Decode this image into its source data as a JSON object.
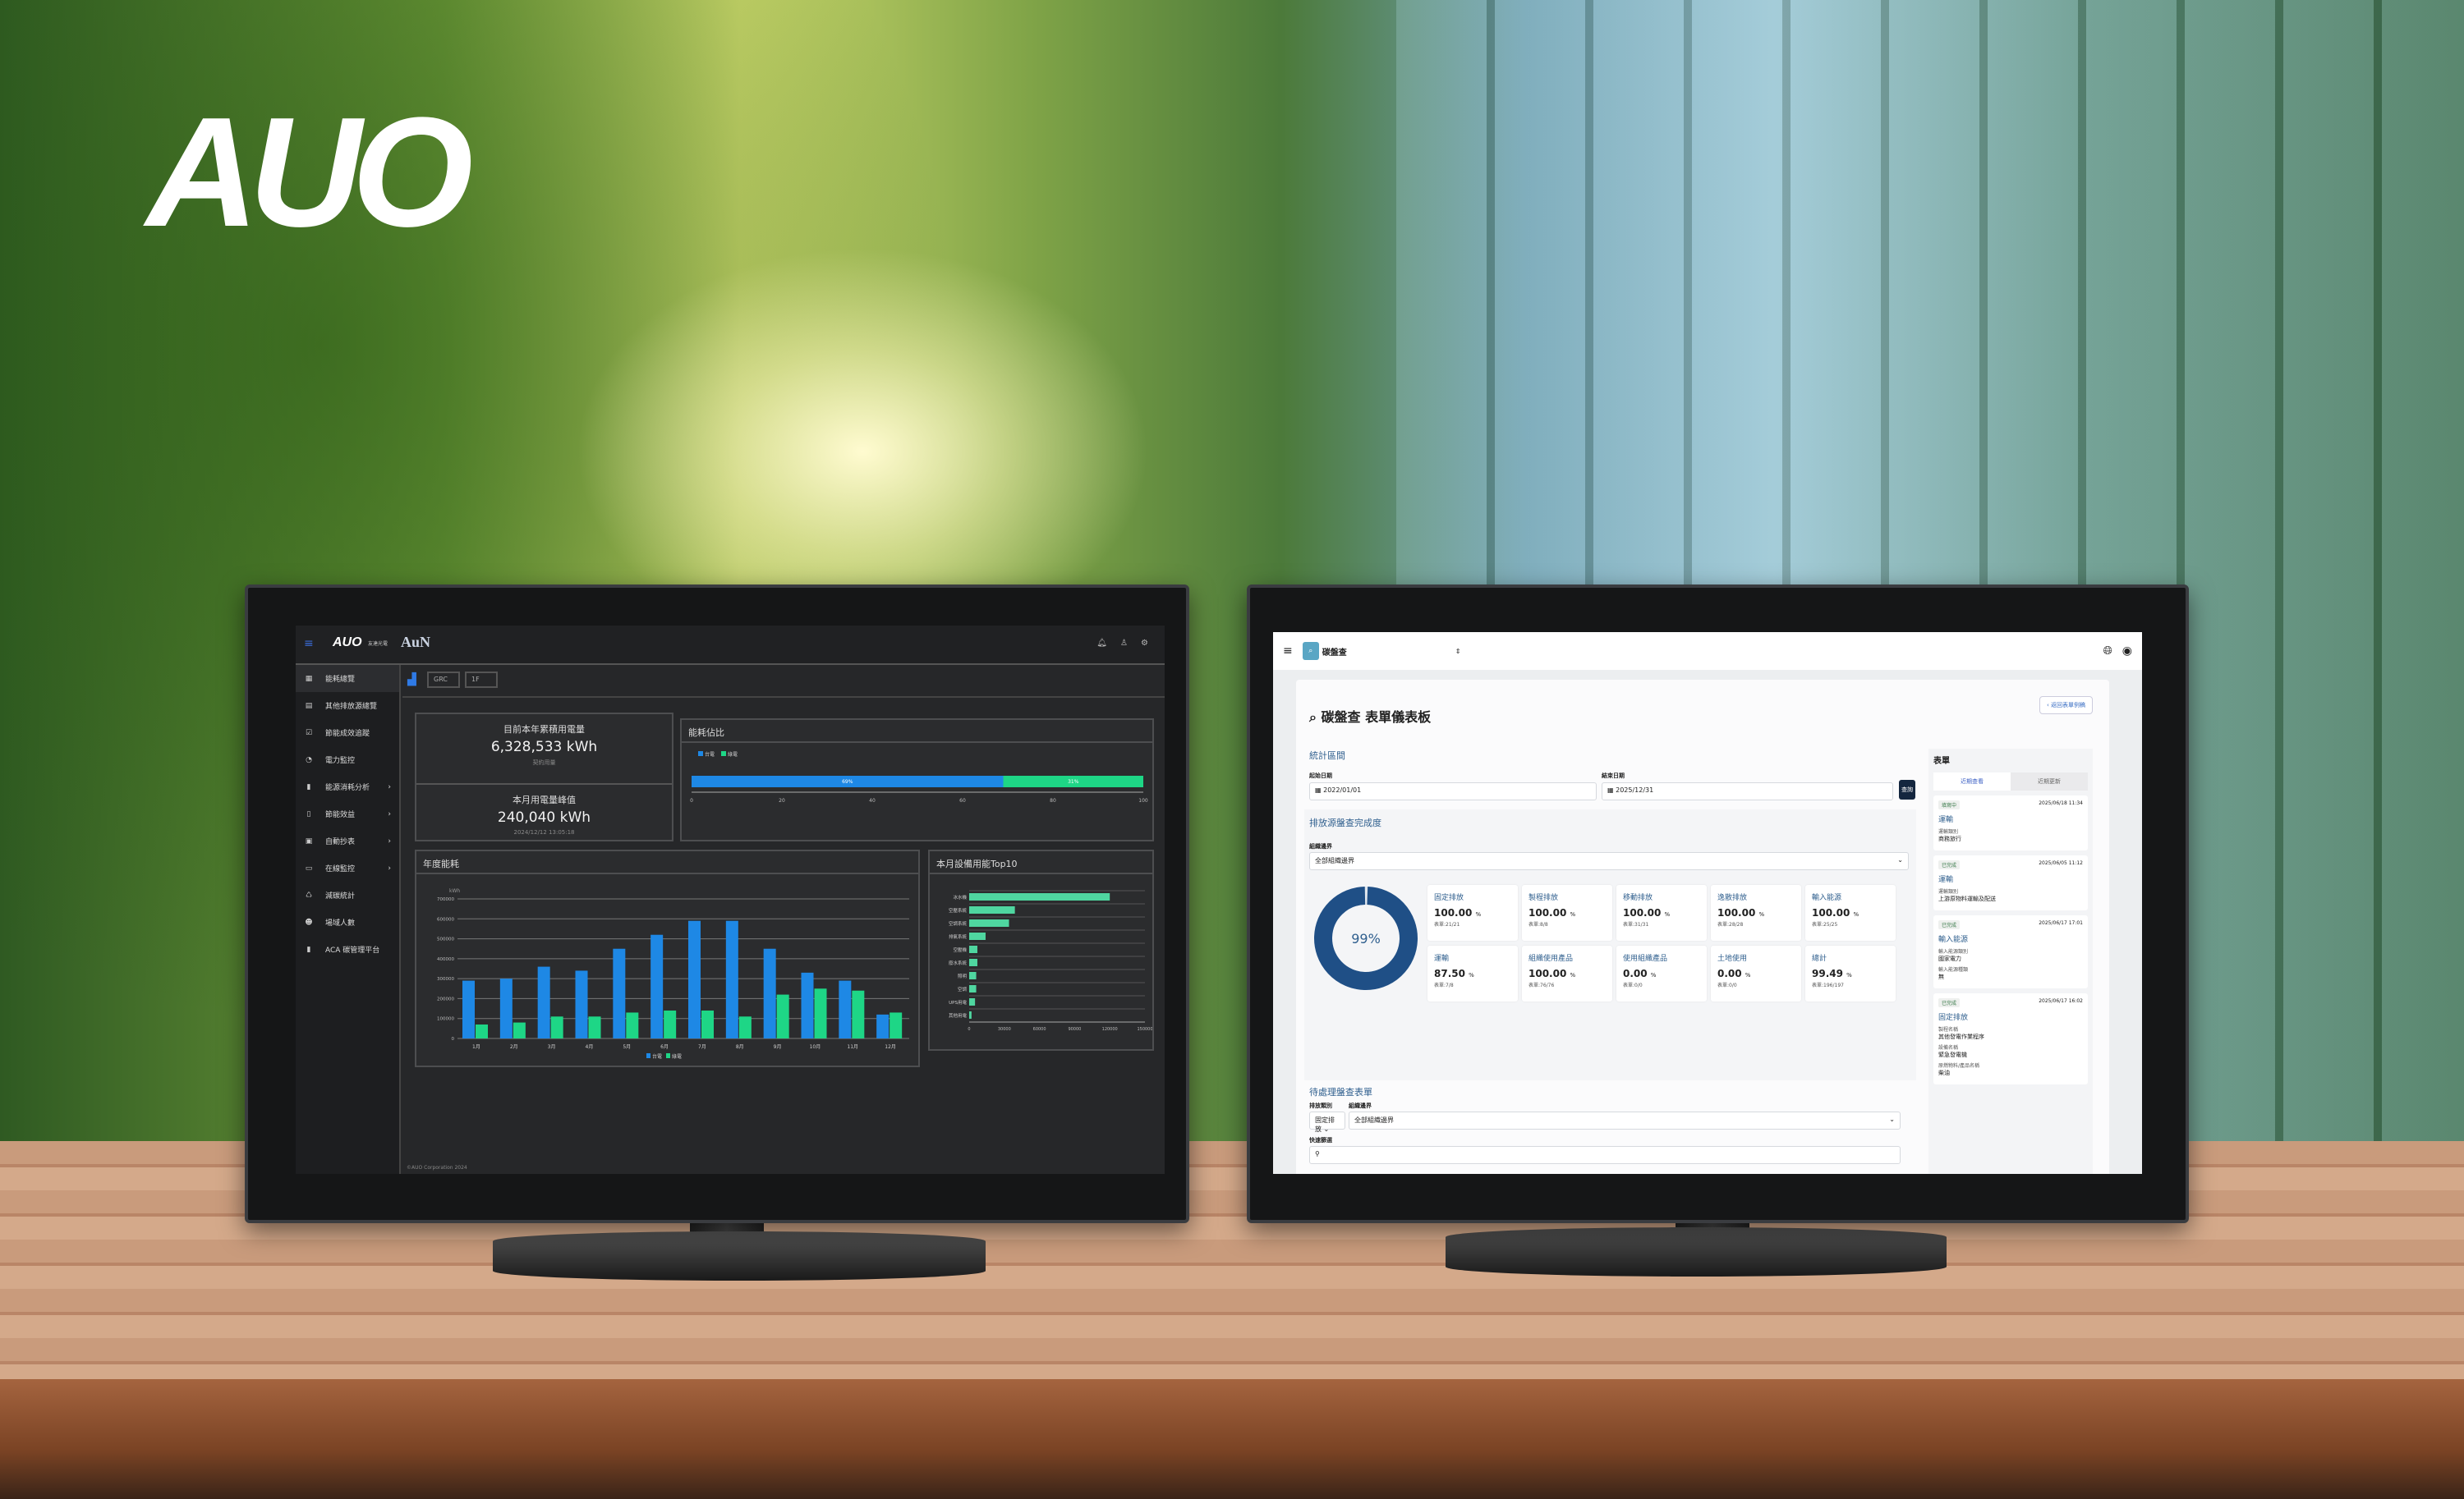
{
  "brand": {
    "logo_text": "AUO"
  },
  "left_dashboard": {
    "header": {
      "logo": "AUO",
      "logo_sub": "友達光電",
      "app_logo": "AuN"
    },
    "sidebar": [
      {
        "icon": "grid-icon",
        "label": "能耗總覽",
        "active": true
      },
      {
        "icon": "table-icon",
        "label": "其他排放源總覽"
      },
      {
        "icon": "check-icon",
        "label": "節能成效追蹤"
      },
      {
        "icon": "gauge-icon",
        "label": "電力監控"
      },
      {
        "icon": "bar-chart-icon",
        "label": "能源消耗分析",
        "expand": true
      },
      {
        "icon": "device-icon",
        "label": "節能效益",
        "expand": true
      },
      {
        "icon": "meter-icon",
        "label": "自動抄表",
        "expand": true
      },
      {
        "icon": "monitor-icon",
        "label": "在線監控",
        "expand": true
      },
      {
        "icon": "recycle-icon",
        "label": "減碳統計"
      },
      {
        "icon": "person-icon",
        "label": "場域人數"
      },
      {
        "icon": "bookmark-icon",
        "label": "ACA 碳管理平台"
      }
    ],
    "filters": {
      "site": "GRC",
      "floor": "1F"
    },
    "kpi": {
      "year_label": "目前本年累積用電量",
      "year_value": "6,328,533 kWh",
      "year_sub": "契約用量",
      "month_label": "本月用電量峰值",
      "month_value": "240,040 kWh",
      "month_time": "2024/12/12 13:05:18"
    },
    "footer_text": "©AUO Corporation 2024"
  },
  "chart_data": [
    {
      "type": "bar",
      "orientation": "horizontal-stacked",
      "title": "能耗佔比",
      "series": [
        {
          "name": "台電",
          "values": [
            69
          ]
        },
        {
          "name": "綠電",
          "values": [
            31
          ]
        }
      ],
      "data_labels": [
        "69%",
        "31%"
      ],
      "xlim": [
        0,
        100
      ],
      "xticks": [
        0,
        20,
        40,
        60,
        80,
        100
      ],
      "legend": "top-left",
      "colors": [
        "#1e88e5",
        "#1ed686"
      ]
    },
    {
      "type": "bar",
      "title": "年度能耗",
      "ylabel": "kWh",
      "categories": [
        "1月",
        "2月",
        "3月",
        "4月",
        "5月",
        "6月",
        "7月",
        "8月",
        "9月",
        "10月",
        "11月",
        "12月"
      ],
      "series": [
        {
          "name": "台電",
          "values": [
            290000,
            300000,
            360000,
            340000,
            450000,
            520000,
            590000,
            590000,
            450000,
            330000,
            290000,
            120000
          ]
        },
        {
          "name": "綠電",
          "values": [
            70000,
            80000,
            110000,
            110000,
            130000,
            140000,
            140000,
            110000,
            220000,
            250000,
            240000,
            130000
          ]
        }
      ],
      "ylim": [
        0,
        700000
      ],
      "yticks": [
        0,
        100000,
        200000,
        300000,
        400000,
        500000,
        600000,
        700000
      ],
      "legend": "bottom",
      "grid": true,
      "colors": [
        "#1e88e5",
        "#1ed686"
      ]
    },
    {
      "type": "bar",
      "orientation": "horizontal",
      "title": "本月設備用能Top10",
      "categories": [
        "冰水機",
        "空壓系統",
        "空調系統",
        "排氣系統",
        "空壓機",
        "廢水系統",
        "照明",
        "空調",
        "UPS用電",
        "其他用電"
      ],
      "values": [
        120000,
        39000,
        34000,
        14000,
        7000,
        7000,
        6000,
        6000,
        5000,
        2000
      ],
      "xlim": [
        0,
        150000
      ],
      "xticks": [
        0,
        30000,
        60000,
        90000,
        120000,
        150000
      ],
      "grid": true,
      "color": "#4fd6a0"
    }
  ],
  "right_dashboard": {
    "header": {
      "app": "碳盤查"
    },
    "title": "碳盤查 表單儀表板",
    "back_button": "返回表單例稿",
    "period": {
      "heading": "統計區間",
      "start_label": "起始日期",
      "start": "2022/01/01",
      "end_label": "結束日期",
      "end": "2025/12/31",
      "query": "查詢"
    },
    "completion": {
      "heading": "排放源盤查完成度",
      "boundary_label": "組織邊界",
      "boundary": "全部組織邊界",
      "overall": 99,
      "overall_label": "99%",
      "categories": [
        {
          "name": "固定排放",
          "pct": "100.00",
          "forms": "表單:21/21"
        },
        {
          "name": "製程排放",
          "pct": "100.00",
          "forms": "表單:8/8"
        },
        {
          "name": "移動排放",
          "pct": "100.00",
          "forms": "表單:31/31"
        },
        {
          "name": "逸散排放",
          "pct": "100.00",
          "forms": "表單:28/28"
        },
        {
          "name": "輸入能源",
          "pct": "100.00",
          "forms": "表單:25/25"
        },
        {
          "name": "運輸",
          "pct": "87.50",
          "forms": "表單:7/8"
        },
        {
          "name": "組織使用產品",
          "pct": "100.00",
          "forms": "表單:76/76"
        },
        {
          "name": "使用組織產品",
          "pct": "0.00",
          "forms": "表單:0/0"
        },
        {
          "name": "土地使用",
          "pct": "0.00",
          "forms": "表單:0/0"
        },
        {
          "name": "總計",
          "pct": "99.49",
          "forms": "表單:196/197"
        }
      ]
    },
    "pending": {
      "heading": "待處理盤查表單",
      "type_label": "排放類別",
      "type": "固定排放",
      "boundary_label": "組織邊界",
      "boundary": "全部組織邊界",
      "search_label": "快速篩選"
    },
    "forms_panel": {
      "heading": "表單",
      "tabs": [
        "近期查看",
        "近期更新"
      ],
      "items": [
        {
          "status": "填寫中",
          "time": "2025/06/18 11:34",
          "title": "運輸",
          "fields": [
            {
              "k": "運輸類別",
              "v": "商務旅行"
            }
          ]
        },
        {
          "status": "已完成",
          "time": "2025/06/05 11:12",
          "title": "運輸",
          "fields": [
            {
              "k": "運輸類別",
              "v": "上游原物料運輸及配送"
            }
          ]
        },
        {
          "status": "已完成",
          "time": "2025/06/17 17:01",
          "title": "輸入能源",
          "fields": [
            {
              "k": "輸入能源類別",
              "v": "國家電力"
            },
            {
              "k": "輸入能源種類",
              "v": "無"
            }
          ]
        },
        {
          "status": "已完成",
          "time": "2025/06/17 16:02",
          "title": "固定排放",
          "fields": [
            {
              "k": "製程名稱",
              "v": "其他發電作業程序"
            },
            {
              "k": "設備名稱",
              "v": "緊急發電機"
            },
            {
              "k": "原燃物料/產品名稱",
              "v": "柴油"
            }
          ]
        }
      ]
    }
  },
  "pct_unit": "%"
}
